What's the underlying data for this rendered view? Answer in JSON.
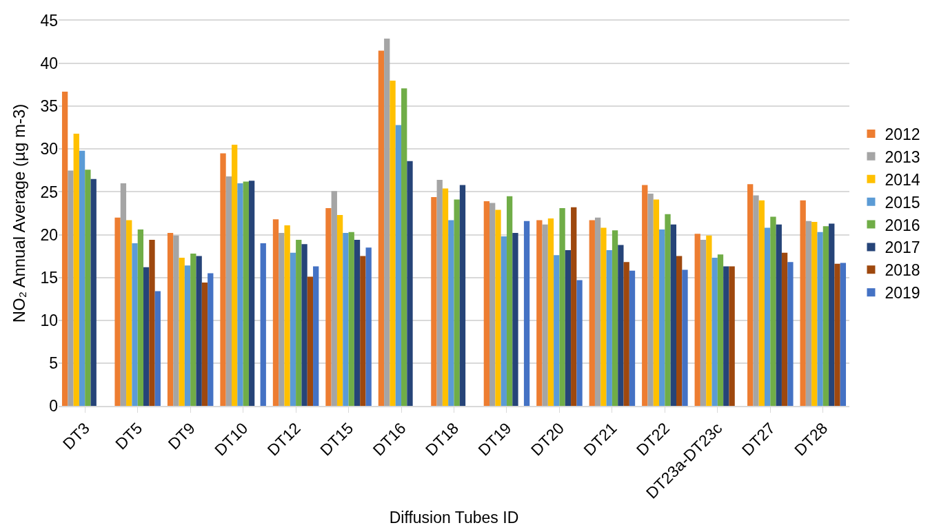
{
  "chart_data": {
    "type": "bar",
    "xlabel": "Diffusion Tubes ID",
    "ylabel": "NO₂ Annual Average (µg m-3)",
    "categories": [
      "DT3",
      "DT5",
      "DT9",
      "DT10",
      "DT12",
      "DT15",
      "DT16",
      "DT18",
      "DT19",
      "DT20",
      "DT21",
      "DT22",
      "DT23a-DT23c",
      "DT27",
      "DT28"
    ],
    "series": [
      {
        "name": "2012",
        "color": "#ed7d31",
        "values": [
          36.7,
          22.0,
          20.2,
          29.5,
          21.8,
          23.1,
          41.5,
          24.4,
          23.9,
          21.7,
          21.7,
          25.8,
          20.1,
          25.9,
          24.0
        ]
      },
      {
        "name": "2013",
        "color": "#a5a5a5",
        "values": [
          27.5,
          26.0,
          19.9,
          26.8,
          20.2,
          25.1,
          42.9,
          26.4,
          23.7,
          21.2,
          22.0,
          24.8,
          19.4,
          24.6,
          21.6
        ]
      },
      {
        "name": "2014",
        "color": "#ffc000",
        "values": [
          31.8,
          21.7,
          17.3,
          30.5,
          21.1,
          22.3,
          38.0,
          25.4,
          22.9,
          21.9,
          20.8,
          24.1,
          19.9,
          24.0,
          21.5
        ]
      },
      {
        "name": "2015",
        "color": "#5b9bd5",
        "values": [
          29.8,
          19.0,
          16.4,
          26.0,
          17.9,
          20.2,
          32.8,
          21.7,
          19.8,
          17.6,
          18.2,
          20.6,
          17.3,
          20.8,
          20.3
        ]
      },
      {
        "name": "2016",
        "color": "#70ad47",
        "values": [
          27.6,
          20.6,
          17.8,
          26.2,
          19.4,
          20.3,
          37.1,
          24.1,
          24.5,
          23.1,
          20.5,
          22.4,
          17.7,
          22.1,
          21.0
        ]
      },
      {
        "name": "2017",
        "color": "#264478",
        "values": [
          26.5,
          16.2,
          17.5,
          26.3,
          18.9,
          19.4,
          28.6,
          25.8,
          20.2,
          18.2,
          18.8,
          21.2,
          16.3,
          21.2,
          21.3
        ]
      },
      {
        "name": "2018",
        "color": "#9e480e",
        "values": [
          null,
          19.4,
          14.4,
          null,
          15.1,
          17.5,
          null,
          null,
          null,
          23.2,
          16.8,
          17.5,
          16.3,
          17.9,
          16.6
        ]
      },
      {
        "name": "2019",
        "color": "#4472c4",
        "values": [
          null,
          13.4,
          15.5,
          19.0,
          16.3,
          18.5,
          null,
          null,
          21.6,
          14.7,
          15.8,
          15.9,
          null,
          16.8,
          16.7
        ]
      }
    ],
    "ylim": [
      0,
      45
    ],
    "yticks": [
      0,
      5,
      10,
      15,
      20,
      25,
      30,
      35,
      40,
      45
    ],
    "grid": "y",
    "legend": "right"
  }
}
